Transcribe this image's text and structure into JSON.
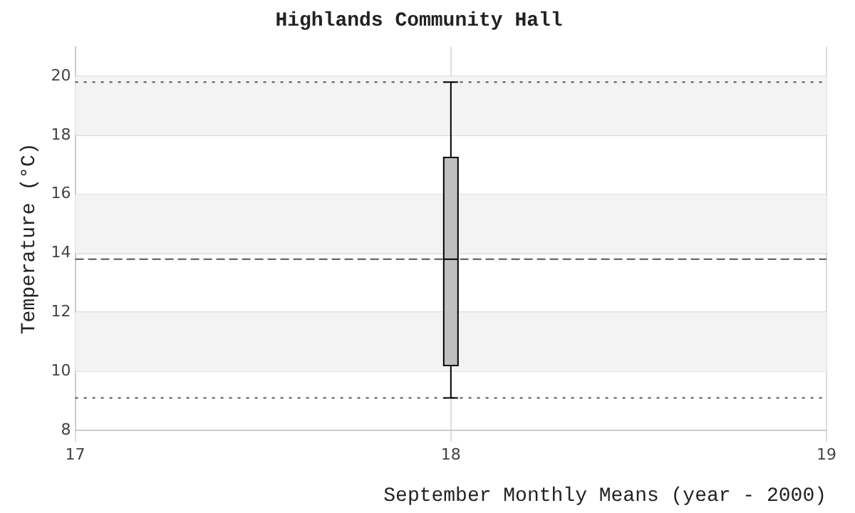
{
  "chart_data": {
    "type": "box",
    "title": "Highlands Community Hall",
    "xlabel": "September Monthly Means (year - 2000)",
    "ylabel": "Temperature (°C)",
    "x": [
      18
    ],
    "boxes": [
      {
        "low": 9.1,
        "q1": 10.2,
        "median": 13.8,
        "q3": 17.25,
        "high": 19.8
      }
    ],
    "color": "#bfbfbf",
    "xlim": [
      17,
      19
    ],
    "xticks": [
      17,
      18,
      19
    ],
    "ylim": [
      8,
      21
    ],
    "yticks": [
      8,
      10,
      12,
      14,
      16,
      18,
      20
    ],
    "ref_lines": [
      {
        "axis": "y",
        "value": 19.8,
        "line_style": "dotted"
      },
      {
        "axis": "y",
        "value": 13.8,
        "line_style": "dashed"
      },
      {
        "axis": "y",
        "value": 9.1,
        "line_style": "dotted"
      }
    ],
    "grid": true,
    "legend": false
  }
}
